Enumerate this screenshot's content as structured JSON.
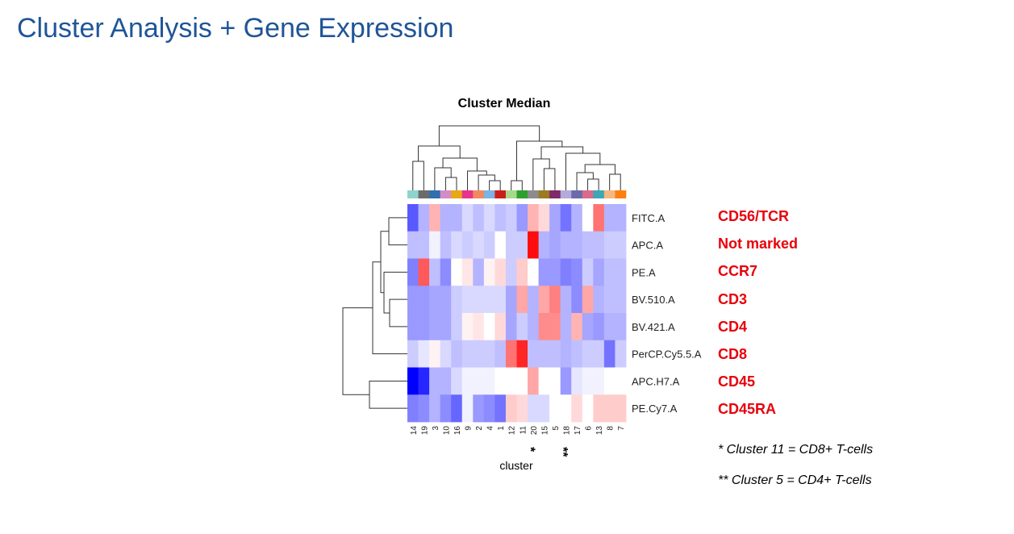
{
  "slide": {
    "title": "Cluster Analysis + Gene Expression",
    "notes": [
      "* Cluster 11 = CD8+ T-cells",
      "** Cluster 5 = CD4+ T-cells"
    ]
  },
  "markers": [
    "CD56/TCR",
    "Not marked",
    "CCR7",
    "CD3",
    "CD4",
    "CD8",
    "CD45",
    "CD45RA"
  ],
  "colors": {
    "title": "#1f5597",
    "marker_label": "#e8000b",
    "low": "#0000ff",
    "mid": "#ffffff",
    "high": "#ff0000"
  },
  "chart_data": {
    "type": "heatmap",
    "title": "Cluster Median",
    "xlabel": "cluster",
    "columns": [
      "14",
      "19",
      "3",
      "10",
      "16",
      "9",
      "2",
      "4",
      "1",
      "12",
      "11",
      "20",
      "15",
      "5",
      "18",
      "17",
      "6",
      "13",
      "8",
      "7"
    ],
    "column_colors": [
      "#8fd4cc",
      "#6b6b6b",
      "#2e6fad",
      "#d48cc4",
      "#e6a817",
      "#e8338a",
      "#f08a5d",
      "#7fb2e5",
      "#cc1d1d",
      "#a6d98c",
      "#2ea02e",
      "#8c8c8c",
      "#9c7a1f",
      "#7f2a6b",
      "#b5aad9",
      "#6b6bab",
      "#d96b8c",
      "#3fa6b5",
      "#f5b880",
      "#ff7f0e"
    ],
    "column_annotations": [
      "",
      "",
      "",
      "",
      "",
      "",
      "",
      "",
      "",
      "",
      "*",
      "",
      "",
      "**",
      "",
      "",
      "",
      "",
      "",
      ""
    ],
    "rows": [
      "FITC.A",
      "APC.A",
      "PE.A",
      "BV.510.A",
      "BV.421.A",
      "PerCP.Cy5.5.A",
      "APC.H7.A",
      "PE.Cy7.A"
    ],
    "values": [
      [
        -0.65,
        -0.3,
        0.3,
        -0.3,
        -0.3,
        -0.15,
        -0.25,
        -0.15,
        -0.25,
        -0.2,
        -0.4,
        0.3,
        0.15,
        -0.35,
        -0.55,
        -0.3,
        0.0,
        0.55,
        -0.3,
        -0.3
      ],
      [
        -0.25,
        -0.25,
        -0.05,
        -0.25,
        -0.15,
        -0.2,
        -0.15,
        -0.2,
        0.0,
        -0.2,
        -0.2,
        0.95,
        -0.3,
        -0.35,
        -0.3,
        -0.3,
        -0.25,
        -0.25,
        -0.2,
        -0.2
      ],
      [
        -0.5,
        0.65,
        -0.25,
        -0.45,
        0.0,
        0.1,
        -0.3,
        0.05,
        0.15,
        -0.2,
        0.2,
        0.0,
        -0.4,
        -0.4,
        -0.5,
        -0.45,
        -0.2,
        -0.35,
        -0.25,
        -0.25
      ],
      [
        -0.4,
        -0.4,
        -0.35,
        -0.35,
        -0.2,
        -0.15,
        -0.15,
        -0.15,
        -0.15,
        -0.35,
        0.35,
        -0.3,
        0.35,
        0.5,
        -0.3,
        -0.45,
        0.35,
        -0.3,
        -0.25,
        -0.25
      ],
      [
        -0.4,
        -0.4,
        -0.35,
        -0.35,
        -0.2,
        0.05,
        0.1,
        0.0,
        0.15,
        -0.35,
        -0.2,
        -0.3,
        0.45,
        0.45,
        -0.3,
        0.3,
        -0.35,
        -0.4,
        -0.3,
        -0.3
      ],
      [
        -0.2,
        -0.1,
        0.05,
        -0.15,
        -0.25,
        -0.2,
        -0.2,
        -0.2,
        -0.25,
        0.55,
        0.85,
        -0.25,
        -0.25,
        -0.25,
        -0.3,
        -0.25,
        -0.2,
        -0.2,
        -0.55,
        -0.2
      ],
      [
        -1.0,
        -0.85,
        -0.3,
        -0.3,
        -0.15,
        -0.05,
        -0.05,
        -0.05,
        0.0,
        0.0,
        0.0,
        0.35,
        0.0,
        0.0,
        -0.4,
        -0.1,
        -0.05,
        -0.05,
        0.0,
        0.0
      ],
      [
        -0.5,
        -0.45,
        -0.3,
        -0.45,
        -0.6,
        -0.05,
        -0.4,
        -0.45,
        -0.55,
        0.2,
        0.15,
        -0.15,
        -0.15,
        0.0,
        0.0,
        0.15,
        0.0,
        0.2,
        0.2,
        0.2
      ]
    ],
    "colorscale": {
      "low": -1,
      "mid": 0,
      "high": 1
    }
  }
}
